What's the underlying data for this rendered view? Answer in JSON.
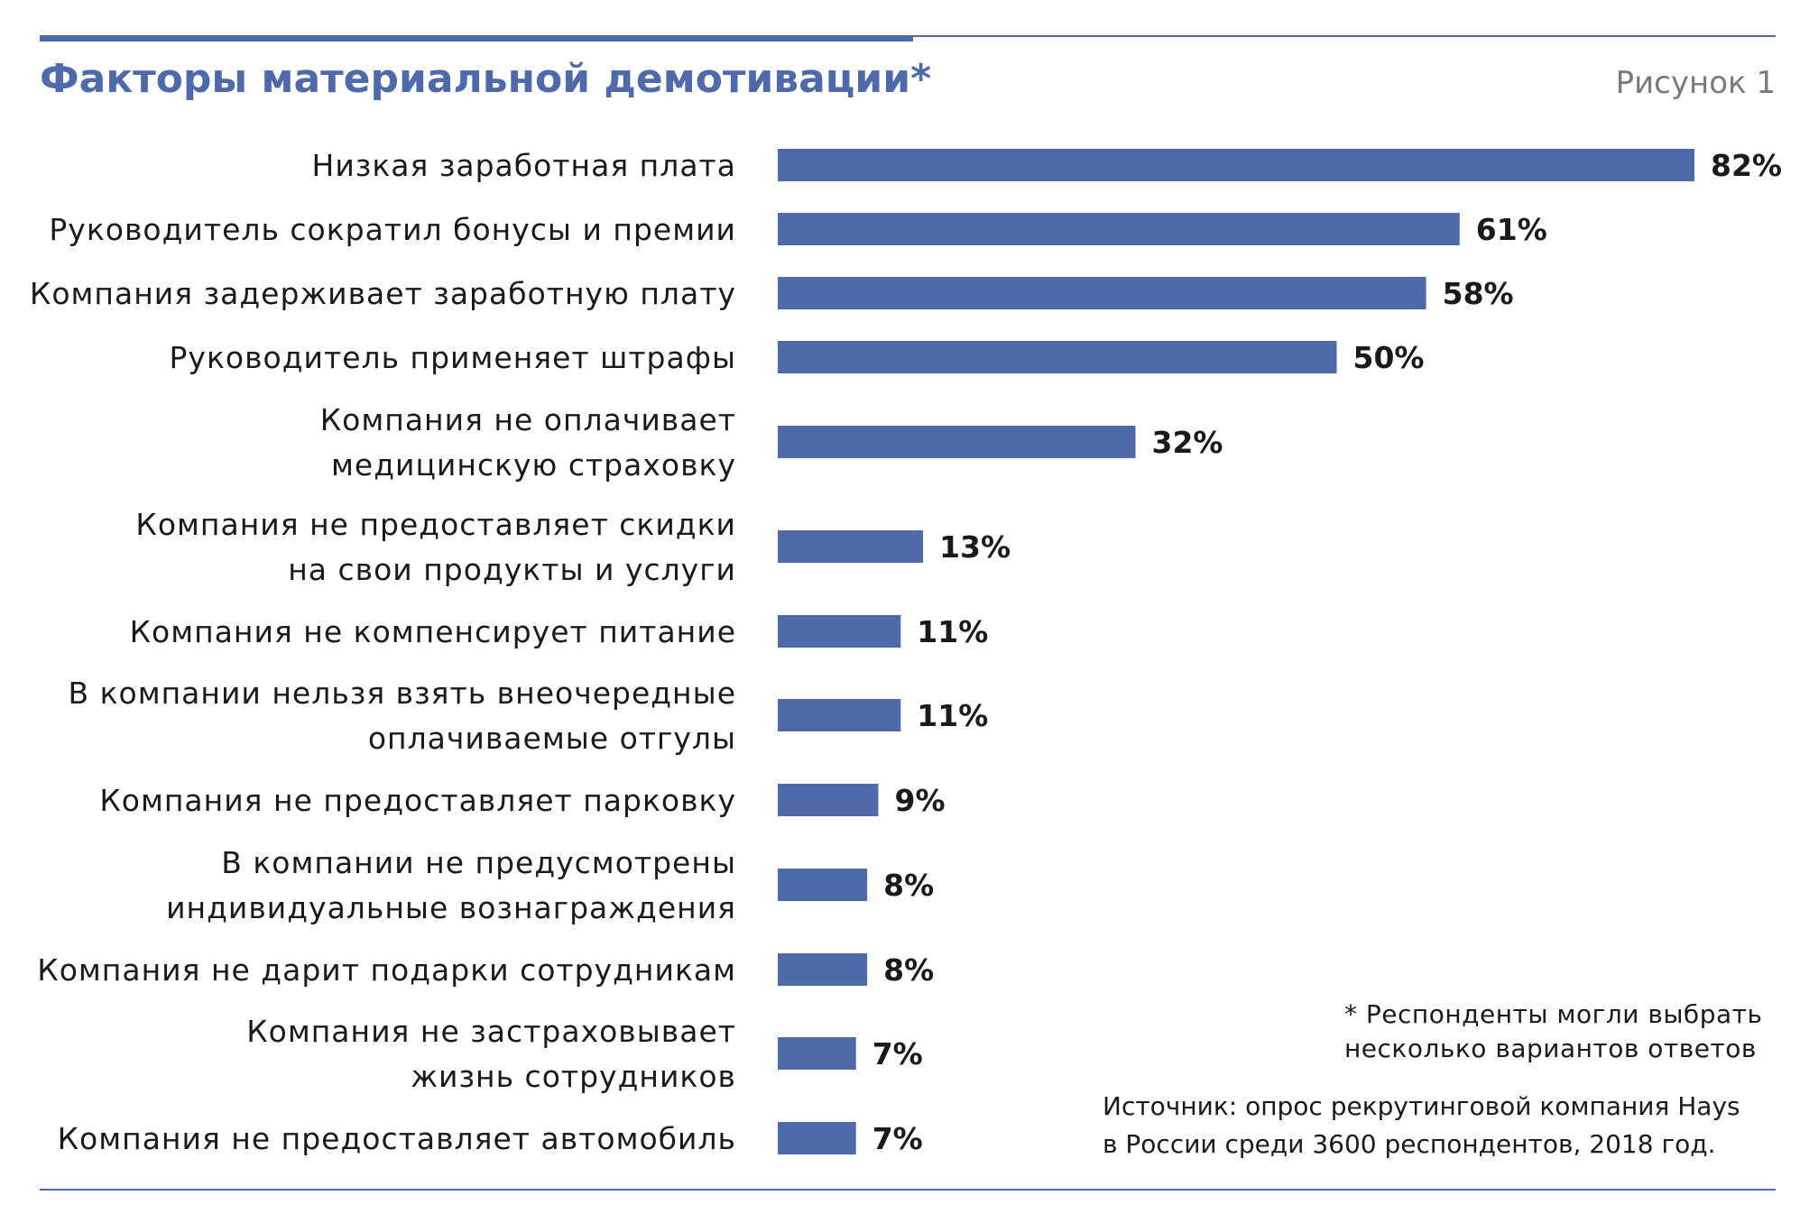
{
  "header": {
    "title": "Факторы материальной демотивации*",
    "figure_label": "Рисунок 1"
  },
  "footnote": {
    "lines": [
      "* Респонденты могли выбрать",
      "несколько вариантов ответов"
    ]
  },
  "source": {
    "lines": [
      "Источник: опрос рекрутинговой компания Hays",
      "в России среди 3600 респондентов, 2018 год."
    ]
  },
  "colors": {
    "bar": "#4f6aab",
    "title": "#4f6aab",
    "rule": "#4f6aab"
  },
  "chart_data": {
    "type": "bar",
    "orientation": "horizontal",
    "title": "Факторы материальной демотивации*",
    "categories": [
      [
        "Низкая заработная плата"
      ],
      [
        "Руководитель сократил бонусы и премии"
      ],
      [
        "Компания задерживает заработную плату"
      ],
      [
        "Руководитель применяет штрафы"
      ],
      [
        "Компания не оплачивает",
        "медицинскую страховку"
      ],
      [
        "Компания не предоставляет скидки",
        "на свои продукты и услуги"
      ],
      [
        "Компания не компенсирует питание"
      ],
      [
        "В компании нельзя взять внеочередные",
        "оплачиваемые отгулы"
      ],
      [
        "Компания не предоставляет парковку"
      ],
      [
        "В компании не предусмотрены",
        "индивидуальные вознаграждения"
      ],
      [
        "Компания не дарит подарки сотрудникам"
      ],
      [
        "Компания не застраховывает",
        "жизнь сотрудников"
      ],
      [
        "Компания не предоставляет автомобиль"
      ]
    ],
    "values": [
      82,
      61,
      58,
      50,
      32,
      13,
      11,
      11,
      9,
      8,
      8,
      7,
      7
    ],
    "value_labels": [
      "82%",
      "61%",
      "58%",
      "50%",
      "32%",
      "13%",
      "11%",
      "11%",
      "9%",
      "8%",
      "8%",
      "7%",
      "7%"
    ],
    "unit": "%",
    "grid": false,
    "legend": "none"
  }
}
